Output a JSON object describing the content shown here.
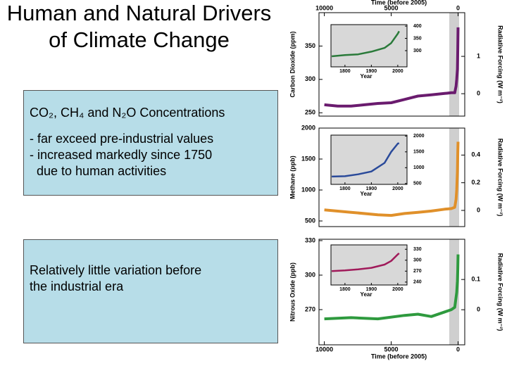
{
  "slide": {
    "title": "Human and Natural Drivers of Climate Change",
    "box1": {
      "heading": "CO₂, CH₄ and N₂O Concentrations",
      "lines": [
        "- far exceed pre-industrial values",
        "- increased markedly since 1750",
        "  due to human activities"
      ]
    },
    "box2": {
      "lines": [
        "Relatively little variation before",
        "the industrial era"
      ]
    }
  },
  "chart_data": [
    {
      "type": "line",
      "xlabel": "Time (before 2005)",
      "xaxis_position": "top",
      "xlim": [
        10400,
        -500
      ],
      "xticks": [
        10000,
        5000,
        0
      ],
      "ylabel": "Carbon Dioxide (ppm)",
      "ylim": [
        245,
        400
      ],
      "yticks": [
        250,
        300,
        350
      ],
      "y2label": "Radiative Forcing (W m⁻²)",
      "y2lim": [
        -0.6,
        2.17
      ],
      "y2ticks": [
        0,
        1
      ],
      "color": "#6a1b6e",
      "x": [
        10000,
        9000,
        8000,
        7000,
        6000,
        5000,
        4000,
        3000,
        2000,
        1000,
        500,
        250,
        150,
        100,
        50,
        20,
        0
      ],
      "values": [
        262,
        260,
        260,
        262,
        264,
        265,
        270,
        275,
        277,
        279,
        280,
        280,
        290,
        300,
        315,
        345,
        378
      ],
      "inset": {
        "xlabel": "Year",
        "xlim": [
          1747,
          2035
        ],
        "xticks": [
          1800,
          1900,
          2000
        ],
        "ylim": [
          234,
          406
        ],
        "yticks": [
          300,
          350,
          400
        ],
        "color": "#2a7a3a",
        "x": [
          1750,
          1800,
          1850,
          1900,
          1950,
          1975,
          2000,
          2005
        ],
        "values": [
          277,
          282,
          285,
          296,
          311,
          331,
          369,
          379
        ]
      }
    },
    {
      "type": "line",
      "xlim": [
        10400,
        -500
      ],
      "ylabel": "Methane (ppb)",
      "ylim": [
        409,
        2000
      ],
      "yticks": [
        500,
        1000,
        1500,
        2000
      ],
      "y2label": "Radiative Forcing (W m⁻²)",
      "y2lim": [
        -0.117,
        0.595
      ],
      "y2ticks": [
        0,
        0.2,
        0.4
      ],
      "color": "#e0902a",
      "x": [
        10000,
        8000,
        6000,
        5000,
        4000,
        3000,
        2000,
        1000,
        500,
        250,
        150,
        100,
        50,
        20,
        0
      ],
      "values": [
        680,
        640,
        600,
        590,
        620,
        640,
        660,
        690,
        700,
        720,
        850,
        1000,
        1300,
        1600,
        1780
      ],
      "inset": {
        "xlabel": "Year",
        "xlim": [
          1747,
          2035
        ],
        "xticks": [
          1800,
          1900,
          2000
        ],
        "ylim": [
          473,
          2029
        ],
        "yticks": [
          500,
          1000,
          1500,
          2000
        ],
        "color": "#2a4a9a",
        "x": [
          1750,
          1800,
          1850,
          1900,
          1950,
          1975,
          2000,
          2005
        ],
        "values": [
          720,
          730,
          790,
          880,
          1150,
          1500,
          1760,
          1775
        ]
      }
    },
    {
      "type": "line",
      "xlabel": "Time (before 2005)",
      "xaxis_position": "bottom",
      "xlim": [
        10400,
        -500
      ],
      "xticks": [
        10000,
        5000,
        0
      ],
      "ylabel": "Nitrous Oxide (ppb)",
      "ylim": [
        239.4,
        331.2
      ],
      "yticks": [
        270,
        300,
        330
      ],
      "y2label": "Radiative Forcing (W m⁻²)",
      "y2lim": [
        -0.116,
        0.233
      ],
      "y2ticks": [
        0,
        0.1
      ],
      "color": "#2e9a3e",
      "x": [
        10000,
        8000,
        6000,
        4000,
        3000,
        2000,
        1000,
        500,
        250,
        100,
        50,
        20,
        0
      ],
      "values": [
        262,
        263,
        262,
        265,
        266,
        264,
        268,
        270,
        272,
        285,
        295,
        305,
        318
      ],
      "inset": {
        "xlabel": "Year",
        "xlim": [
          1747,
          2035
        ],
        "xticks": [
          1800,
          1900,
          2000
        ],
        "ylim": [
          232,
          342
        ],
        "yticks": [
          240,
          270,
          300,
          330
        ],
        "color": "#a01a5a",
        "x": [
          1750,
          1800,
          1850,
          1900,
          1950,
          1975,
          2000,
          2005
        ],
        "values": [
          270,
          272,
          275,
          279,
          288,
          298,
          316,
          319
        ]
      }
    }
  ]
}
